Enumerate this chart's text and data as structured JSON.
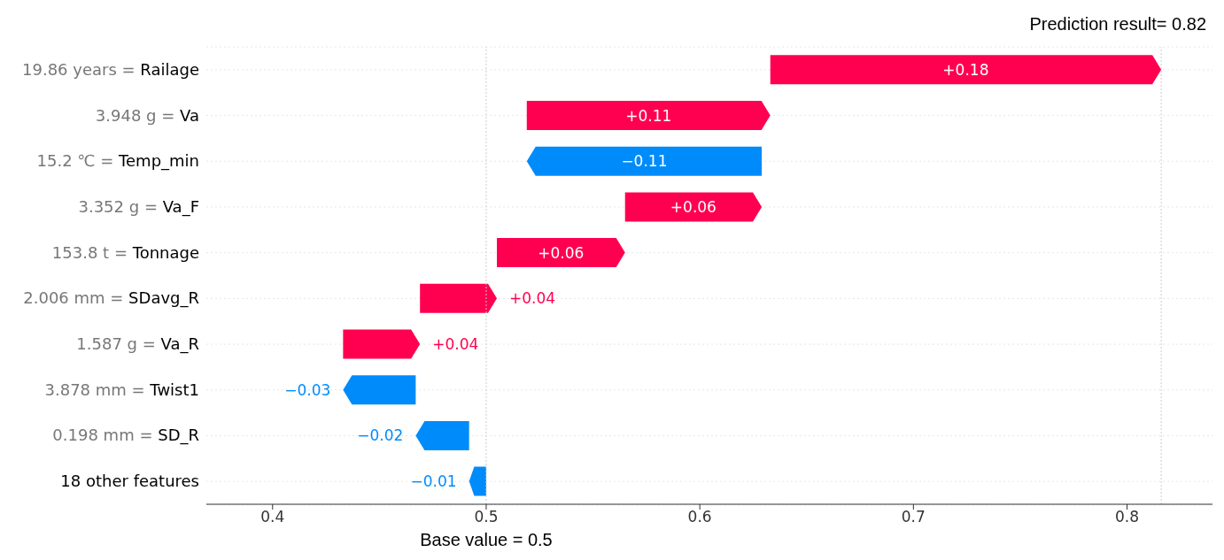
{
  "chart_data": {
    "type": "bar",
    "orientation": "horizontal",
    "categories": [
      "19.86 years = Railage",
      "3.948 g = Va",
      "15.2 ℃ = Temp_min",
      "3.352 g = Va_F",
      "153.8 t = Tonnage",
      "2.006 mm = SDavg_R",
      "1.587 g = Va_R",
      "3.878 mm = Twist1",
      "0.198 mm = SD_R",
      "18 other features"
    ],
    "values": [
      0.183,
      0.114,
      -0.11,
      0.064,
      0.06,
      0.036,
      0.036,
      -0.034,
      -0.025,
      -0.008
    ],
    "base": [
      0.633,
      0.519,
      0.629,
      0.565,
      0.505,
      0.469,
      0.433,
      0.467,
      0.492,
      0.5
    ],
    "colors": [
      "#ff0051",
      "#ff0051",
      "#008bfb",
      "#ff0051",
      "#ff0051",
      "#ff0051",
      "#ff0051",
      "#008bfb",
      "#008bfb",
      "#008bfb"
    ],
    "value_labels": [
      "+0.18",
      "+0.11",
      "−0.11",
      "+0.06",
      "+0.06",
      "+0.04",
      "+0.04",
      "−0.03",
      "−0.02",
      "−0.01"
    ],
    "xlim": [
      0.369,
      0.84
    ],
    "xticks": [
      0.4,
      0.5,
      0.6,
      0.7,
      0.8
    ],
    "ref_lines": [
      {
        "axis": "x",
        "value": 0.5,
        "label": "Base value = 0.5"
      },
      {
        "axis": "x",
        "value": 0.816,
        "label": "Prediction result= 0.82"
      }
    ],
    "grid": "y",
    "legend": false
  }
}
